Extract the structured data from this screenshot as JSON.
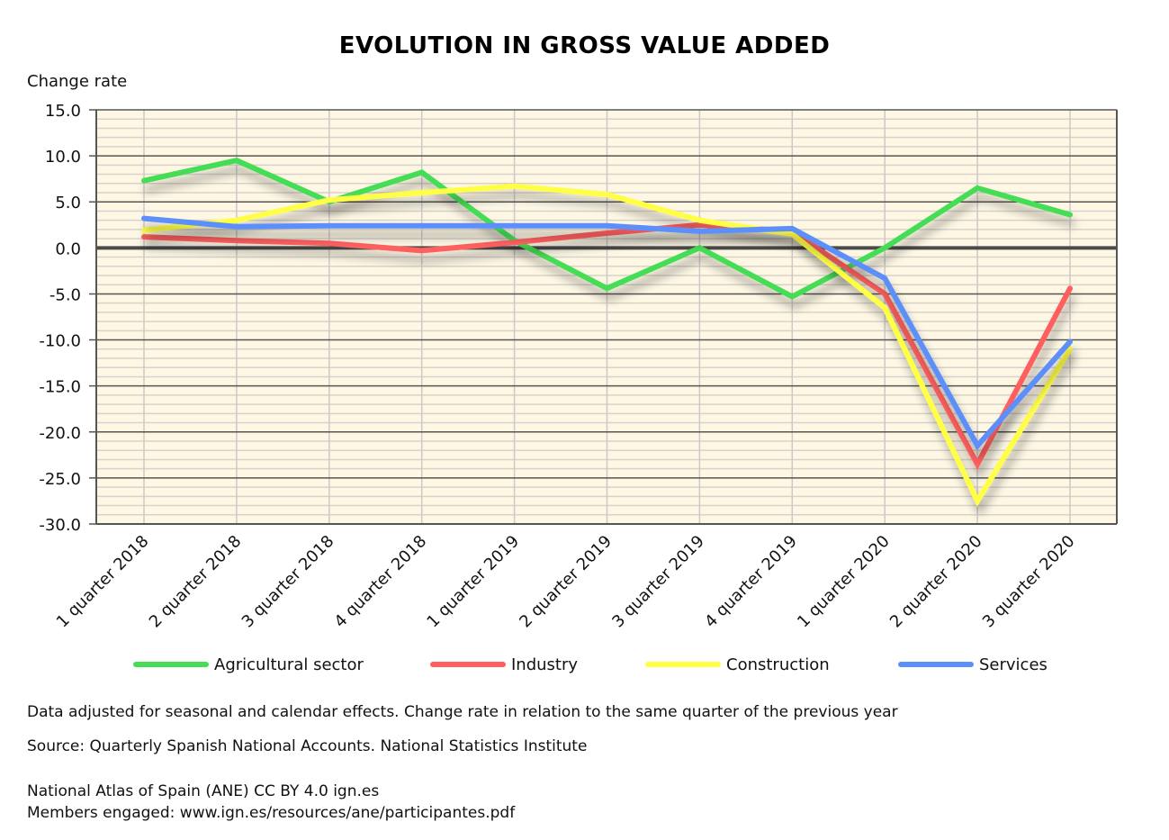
{
  "chart_data": {
    "type": "line",
    "title": "EVOLUTION IN GROSS VALUE ADDED",
    "ylabel": "Change rate",
    "xlabel": "",
    "ylim": [
      -30.0,
      15.0
    ],
    "ytick_step": 5.0,
    "yticks": [
      "15.0",
      "10.0",
      "5.0",
      "0.0",
      "-5.0",
      "-10.0",
      "-15.0",
      "-20.0",
      "-25.0",
      "-30.0"
    ],
    "grid": true,
    "legend_position": "bottom",
    "categories": [
      "1 quarter 2018",
      "2 quarter 2018",
      "3 quarter 2018",
      "4 quarter 2018",
      "1 quarter 2019",
      "2 quarter 2019",
      "3 quarter 2019",
      "4 quarter 2019",
      "1 quarter 2020",
      "2 quarter 2020",
      "3 quarter 2020"
    ],
    "series": [
      {
        "name": "Agricultural sector",
        "color": "#44dd55",
        "values": [
          7.3,
          9.5,
          5.0,
          8.2,
          0.8,
          -4.4,
          0.0,
          -5.3,
          0.0,
          6.5,
          3.6
        ]
      },
      {
        "name": "Industry",
        "color": "#ff5f5f",
        "values": [
          1.2,
          0.8,
          0.5,
          -0.3,
          0.6,
          1.6,
          2.5,
          1.8,
          -5.0,
          -23.5,
          -4.4
        ]
      },
      {
        "name": "Construction",
        "color": "#ffff44",
        "values": [
          1.9,
          3.0,
          5.2,
          6.0,
          6.7,
          5.8,
          3.0,
          1.5,
          -6.5,
          -27.5,
          -11.0
        ]
      },
      {
        "name": "Services",
        "color": "#5b8ff9",
        "values": [
          3.2,
          2.3,
          2.4,
          2.4,
          2.4,
          2.4,
          1.8,
          2.1,
          -3.3,
          -21.5,
          -10.2
        ]
      }
    ]
  },
  "notes": {
    "adjustment": "Data adjusted for seasonal and calendar effects. Change rate in relation to the same quarter of the previous year",
    "source": "Source: Quarterly Spanish National Accounts. National Statistics Institute",
    "license": "National Atlas of Spain (ANE) CC BY 4.0 ign.es",
    "members": "Members engaged: www.ign.es/resources/ane/participantes.pdf"
  },
  "colors": {
    "plot_background": "#fdf7e4",
    "minor_grid": "#d9d2cc",
    "major_grid": "#555555",
    "zero_line": "#4a4a4a"
  }
}
